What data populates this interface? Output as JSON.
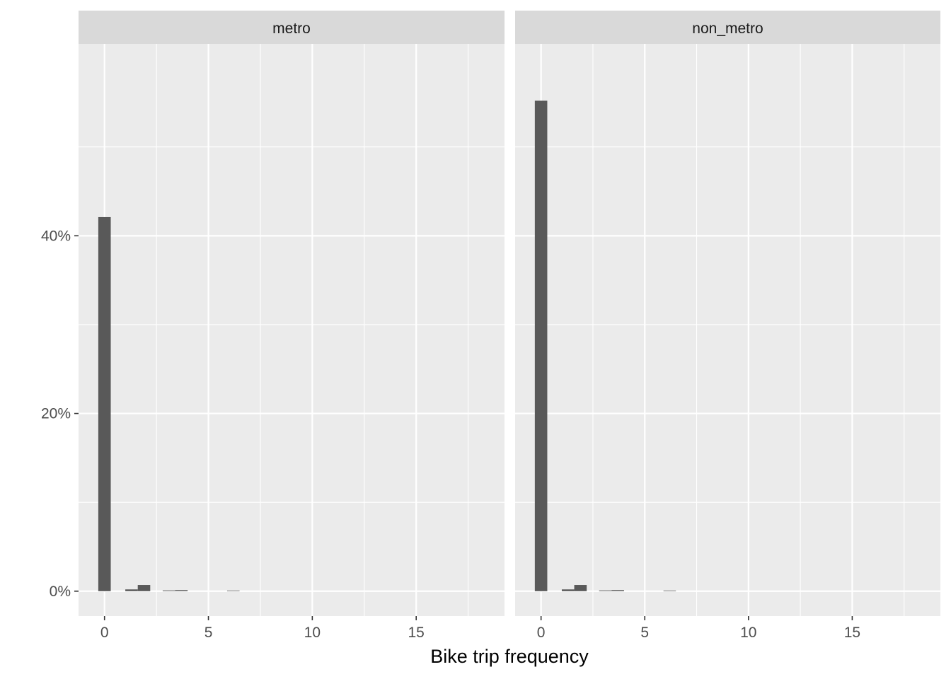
{
  "chart_data": {
    "type": "bar",
    "subtype": "faceted-histogram",
    "xlabel": "Bike trip frequency",
    "ylabel": "",
    "x_ticks": [
      0,
      5,
      10,
      15
    ],
    "y_ticks": [
      0,
      0.2,
      0.4
    ],
    "y_tick_labels": [
      "0%",
      "20%",
      "40%"
    ],
    "xlim": [
      -1.25,
      19.25
    ],
    "ylim": [
      -0.028,
      0.616
    ],
    "grid": true,
    "bin_width": 0.6,
    "facets": [
      {
        "label": "metro",
        "bars": [
          {
            "x": 0.0,
            "value": 0.421
          },
          {
            "x": 1.3,
            "value": 0.002
          },
          {
            "x": 1.9,
            "value": 0.007
          },
          {
            "x": 3.1,
            "value": 0.0008
          },
          {
            "x": 3.7,
            "value": 0.0012
          },
          {
            "x": 6.2,
            "value": 0.0006
          }
        ]
      },
      {
        "label": "non_metro",
        "bars": [
          {
            "x": 0.0,
            "value": 0.552
          },
          {
            "x": 1.3,
            "value": 0.002
          },
          {
            "x": 1.9,
            "value": 0.007
          },
          {
            "x": 3.1,
            "value": 0.0008
          },
          {
            "x": 3.7,
            "value": 0.0012
          },
          {
            "x": 6.2,
            "value": 0.0006
          }
        ]
      }
    ],
    "colors": {
      "panel_background": "#ebebeb",
      "strip_background": "#d9d9d9",
      "grid": "#ffffff",
      "bar_fill": "#595959"
    }
  }
}
